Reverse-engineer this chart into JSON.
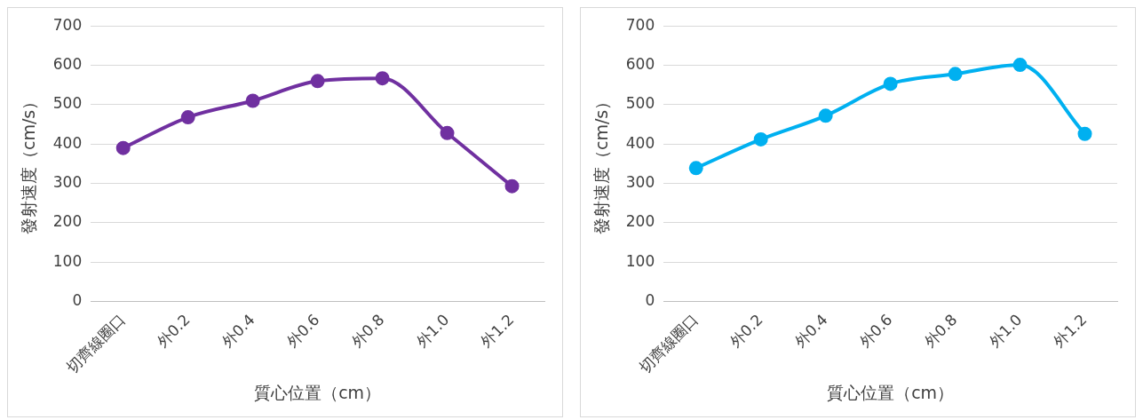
{
  "chart_data": [
    {
      "type": "line",
      "xlabel": "質心位置（cm）",
      "ylabel": "發射速度（cm/s）",
      "categories": [
        "切齊線圈口",
        "外0.2",
        "外0.4",
        "外0.6",
        "外0.8",
        "外1.0",
        "外1.2"
      ],
      "series": [
        {
          "color": "#7030a0",
          "values": [
            390,
            468,
            510,
            560,
            567,
            428,
            293
          ]
        }
      ],
      "ylim": [
        0,
        700
      ],
      "yticks": [
        0,
        100,
        200,
        300,
        400,
        500,
        600,
        700
      ],
      "grid": "y",
      "legend": false,
      "marker": "circle"
    },
    {
      "type": "line",
      "xlabel": "質心位置（cm）",
      "ylabel": "發射速度（cm/s）",
      "categories": [
        "切齊線圈口",
        "外0.2",
        "外0.4",
        "外0.6",
        "外0.8",
        "外1.0",
        "外1.2"
      ],
      "series": [
        {
          "color": "#00b0f0",
          "values": [
            339,
            412,
            472,
            553,
            578,
            601,
            426
          ]
        }
      ],
      "ylim": [
        0,
        700
      ],
      "yticks": [
        0,
        100,
        200,
        300,
        400,
        500,
        600,
        700
      ],
      "grid": "y",
      "legend": false,
      "marker": "circle"
    }
  ]
}
